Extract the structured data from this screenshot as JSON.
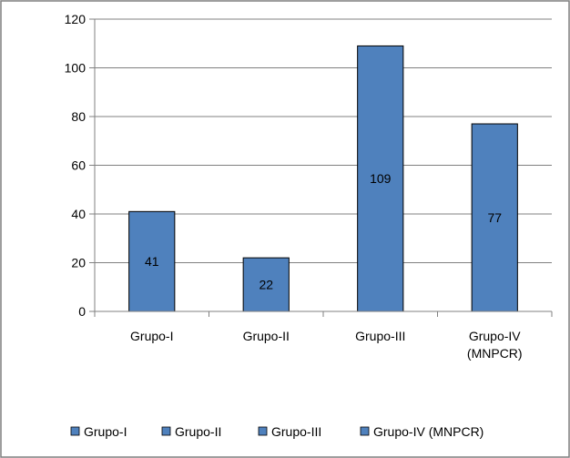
{
  "chart_data": {
    "type": "bar",
    "categories": [
      [
        "Grupo-I"
      ],
      [
        "Grupo-II"
      ],
      [
        "Grupo-III"
      ],
      [
        "Grupo-IV",
        "(MNPCR)"
      ]
    ],
    "values": [
      41,
      22,
      109,
      77
    ],
    "ylim": [
      0,
      120
    ],
    "yticks": [
      0,
      20,
      40,
      60,
      80,
      100,
      120
    ],
    "grid": true,
    "legend_position": "bottom",
    "legend": [
      "Grupo-I",
      "Grupo-II",
      "Grupo-III",
      "Grupo-IV (MNPCR)"
    ],
    "colors": {
      "bar_fill": "#4f81bd",
      "bar_stroke": "#000000",
      "grid": "#808080",
      "border": "#7f7f7f"
    }
  }
}
